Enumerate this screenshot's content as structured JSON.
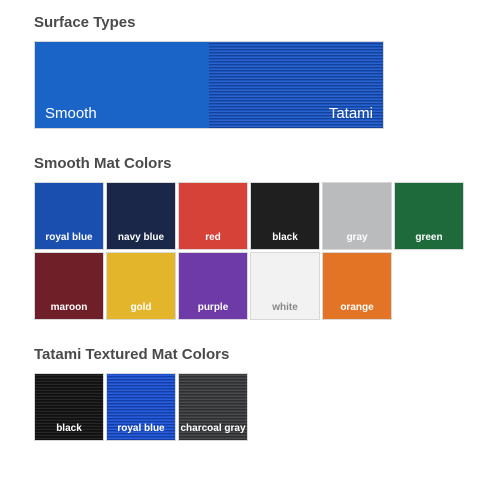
{
  "sections": {
    "surfaceTypes": {
      "title": "Surface Types",
      "left": {
        "label": "Smooth",
        "color": "#1a63c7",
        "textColor": "#ffffff"
      },
      "right": {
        "label": "Tatami",
        "color": "#1a55c4",
        "textColor": "#ffffff",
        "tatami": true
      }
    },
    "smoothColors": {
      "title": "Smooth Mat Colors",
      "swatches": [
        {
          "label": "royal blue",
          "bg": "#1a4fb0",
          "text": "#ffffff"
        },
        {
          "label": "navy blue",
          "bg": "#1a2748",
          "text": "#ffffff"
        },
        {
          "label": "red",
          "bg": "#d64238",
          "text": "#ffffff"
        },
        {
          "label": "black",
          "bg": "#1f1f1f",
          "text": "#ffffff"
        },
        {
          "label": "gray",
          "bg": "#b9bbbd",
          "text": "#ffffff"
        },
        {
          "label": "green",
          "bg": "#1f6a3a",
          "text": "#ffffff"
        },
        {
          "label": "maroon",
          "bg": "#6e1f27",
          "text": "#ffffff"
        },
        {
          "label": "gold",
          "bg": "#e3b52a",
          "text": "#ffffff"
        },
        {
          "label": "purple",
          "bg": "#6d3aa8",
          "text": "#ffffff"
        },
        {
          "label": "white",
          "bg": "#f2f2f2",
          "text": "#888888"
        },
        {
          "label": "orange",
          "bg": "#e37426",
          "text": "#ffffff"
        }
      ]
    },
    "tatamiColors": {
      "title": "Tatami Textured Mat Colors",
      "swatches": [
        {
          "label": "black",
          "bg": "#151515",
          "text": "#ffffff",
          "tatami": true
        },
        {
          "label": "royal blue",
          "bg": "#1a4fd0",
          "text": "#ffffff",
          "tatami": true
        },
        {
          "label": "charcoal gray",
          "bg": "#3a3c3e",
          "text": "#ffffff",
          "tatami": true
        }
      ]
    }
  }
}
